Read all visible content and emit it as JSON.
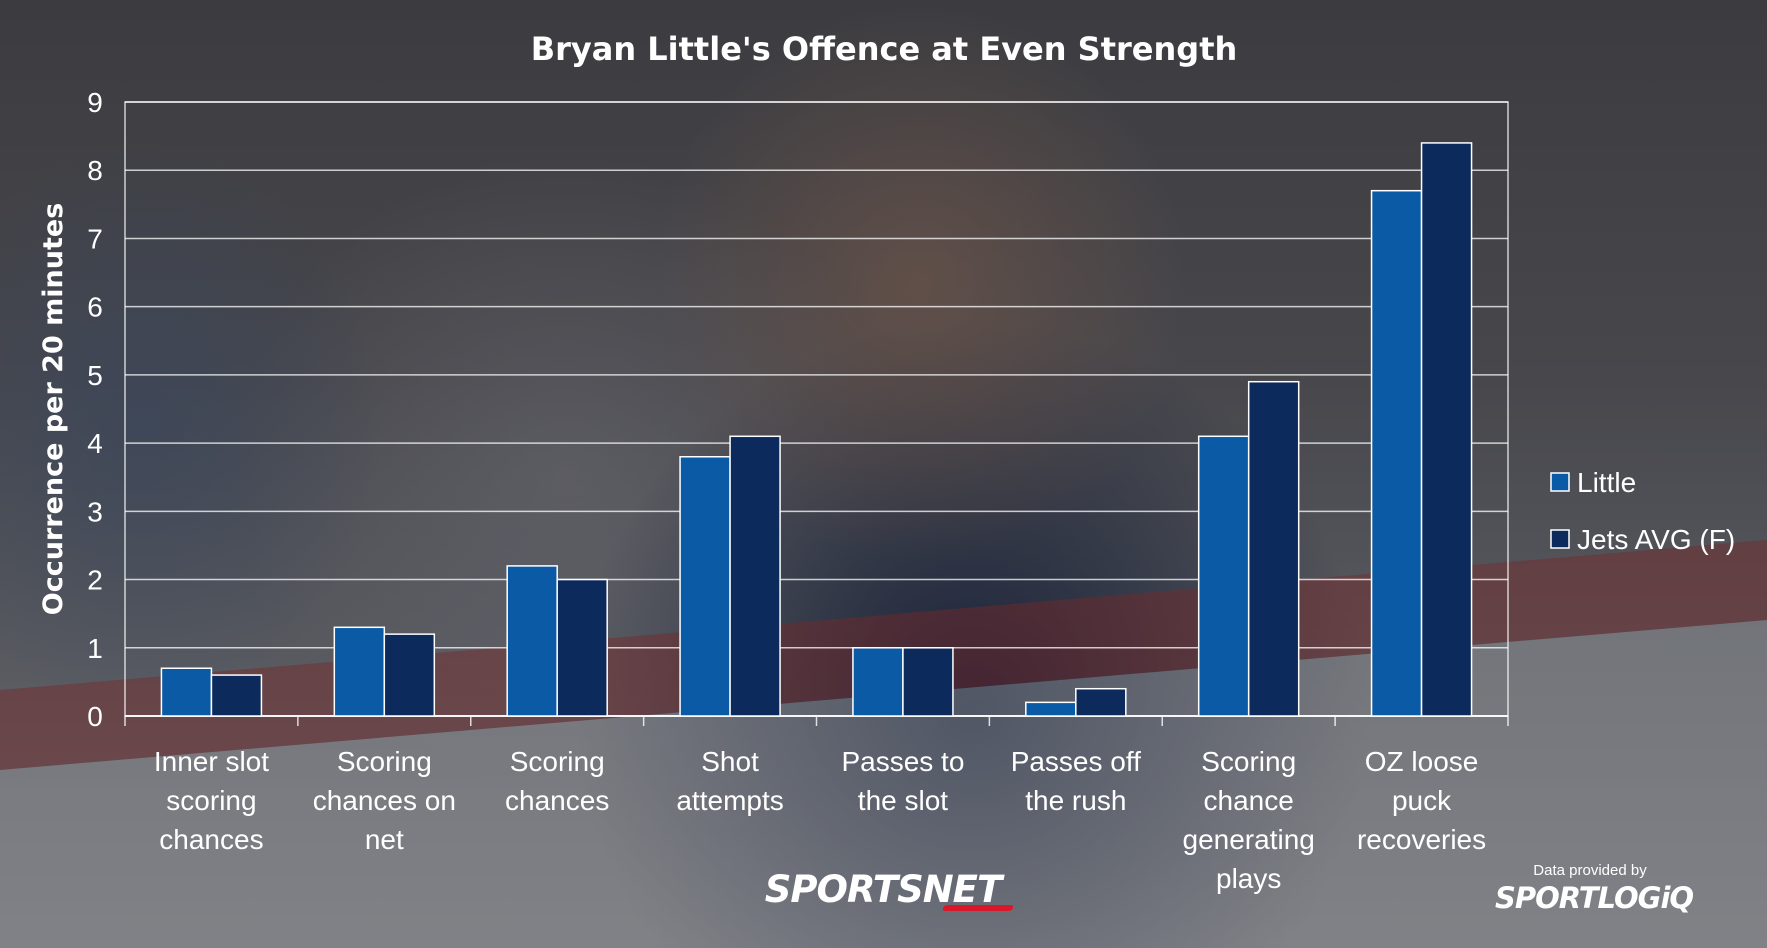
{
  "chart_data": {
    "type": "bar",
    "title": "Bryan Little's Offence at Even Strength",
    "xlabel": "",
    "ylabel": "Occurrence per 20 minutes",
    "ylim": [
      0,
      9
    ],
    "yticks": [
      0,
      1,
      2,
      3,
      4,
      5,
      6,
      7,
      8,
      9
    ],
    "grid": true,
    "legend_position": "right",
    "categories": [
      [
        "Inner slot",
        "scoring",
        "chances"
      ],
      [
        "Scoring",
        "chances on",
        "net"
      ],
      [
        "Scoring",
        "chances"
      ],
      [
        "Shot",
        "attempts"
      ],
      [
        "Passes to",
        "the slot"
      ],
      [
        "Passes off",
        "the rush"
      ],
      [
        "Scoring",
        "chance",
        "generating",
        "plays"
      ],
      [
        "OZ loose",
        "puck",
        "recoveries"
      ]
    ],
    "series": [
      {
        "name": "Little",
        "color": "#0a5aa6",
        "values": [
          0.7,
          1.3,
          2.2,
          3.8,
          1.0,
          0.2,
          4.1,
          7.7
        ]
      },
      {
        "name": "Jets AVG (F)",
        "color": "#0c2a5c",
        "values": [
          0.6,
          1.2,
          2.0,
          4.1,
          1.0,
          0.4,
          4.9,
          8.4
        ]
      }
    ]
  },
  "branding": {
    "broadcaster": "SPORTSNET",
    "credit_line": "Data provided by",
    "credit_logo": "SPORTLOGiQ"
  }
}
